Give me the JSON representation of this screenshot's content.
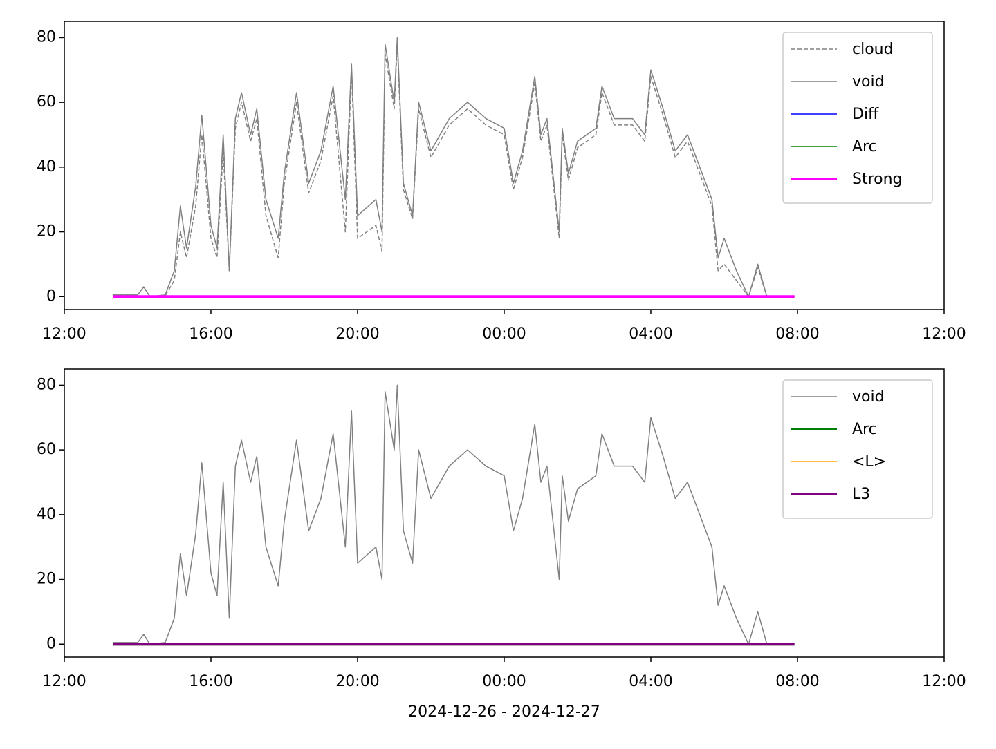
{
  "chart_data": [
    {
      "type": "line",
      "x": [
        "13:20",
        "14:00",
        "14:10",
        "14:20",
        "14:45",
        "15:00",
        "15:10",
        "15:20",
        "15:35",
        "15:45",
        "16:00",
        "16:10",
        "16:20",
        "16:30",
        "16:40",
        "16:50",
        "17:05",
        "17:15",
        "17:30",
        "17:50",
        "18:00",
        "18:20",
        "18:40",
        "19:00",
        "19:20",
        "19:40",
        "19:50",
        "20:00",
        "20:30",
        "20:40",
        "20:45",
        "21:00",
        "21:05",
        "21:15",
        "21:30",
        "21:40",
        "22:00",
        "22:30",
        "23:00",
        "23:30",
        "00:00",
        "00:15",
        "00:30",
        "00:50",
        "01:00",
        "01:10",
        "01:30",
        "01:35",
        "01:45",
        "02:00",
        "02:30",
        "02:40",
        "03:00",
        "03:30",
        "03:50",
        "04:00",
        "04:20",
        "04:40",
        "05:00",
        "05:20",
        "05:40",
        "05:50",
        "06:00",
        "06:20",
        "06:40",
        "06:55",
        "07:10",
        "07:55"
      ],
      "series": [
        {
          "name": "cloud",
          "color": "#808080",
          "width": 1.5,
          "dash": true,
          "values": [
            0.5,
            0.5,
            3,
            0,
            0.2,
            5,
            20,
            12,
            28,
            50,
            18,
            12,
            45,
            8,
            52,
            60,
            48,
            55,
            25,
            12,
            35,
            60,
            32,
            42,
            62,
            20,
            70,
            18,
            22,
            14,
            75,
            58,
            78,
            33,
            24,
            58,
            43,
            53,
            58,
            53,
            50,
            33,
            43,
            66,
            48,
            53,
            18,
            50,
            36,
            46,
            50,
            63,
            53,
            53,
            48,
            68,
            56,
            43,
            48,
            38,
            28,
            8,
            10,
            5,
            0,
            9,
            0,
            0
          ]
        },
        {
          "name": "void",
          "color": "#808080",
          "width": 1.5,
          "values": [
            0.5,
            0.5,
            3,
            0,
            0.5,
            8,
            28,
            15,
            34,
            56,
            22,
            15,
            50,
            8,
            55,
            63,
            50,
            58,
            30,
            18,
            38,
            63,
            35,
            45,
            65,
            30,
            72,
            25,
            30,
            20,
            78,
            60,
            80,
            35,
            25,
            60,
            45,
            55,
            60,
            55,
            52,
            35,
            45,
            68,
            50,
            55,
            20,
            52,
            38,
            48,
            52,
            65,
            55,
            55,
            50,
            70,
            58,
            45,
            50,
            40,
            30,
            12,
            18,
            8,
            0,
            10,
            0,
            0
          ]
        },
        {
          "name": "Diff",
          "color": "#0000ff",
          "width": 1.5,
          "values": [
            0,
            0,
            0,
            0,
            0,
            0,
            0,
            0,
            0,
            0,
            0,
            0,
            0,
            0,
            0,
            0,
            0,
            0,
            0,
            0,
            0,
            0,
            0,
            0,
            0,
            0,
            0,
            0,
            0,
            0,
            0,
            0,
            0,
            0,
            0,
            0,
            0,
            0,
            0,
            0,
            0,
            0,
            0,
            0,
            0,
            0,
            0,
            0,
            0,
            0,
            0,
            0,
            0,
            0,
            0,
            0,
            0,
            0,
            0,
            0,
            0,
            0,
            0,
            0,
            0,
            0,
            0,
            0
          ]
        },
        {
          "name": "Arc",
          "color": "#008000",
          "width": 1.5,
          "values": [
            0,
            0,
            0,
            0,
            0,
            0,
            0,
            0,
            0,
            0,
            0,
            0,
            0,
            0,
            0,
            0,
            0,
            0,
            0,
            0,
            0,
            0,
            0,
            0,
            0,
            0,
            0,
            0,
            0,
            0,
            0,
            0,
            0,
            0,
            0,
            0,
            0,
            0,
            0,
            0,
            0,
            0,
            0,
            0,
            0,
            0,
            0,
            0,
            0,
            0,
            0,
            0,
            0,
            0,
            0,
            0,
            0,
            0,
            0,
            0,
            0,
            0,
            0,
            0,
            0,
            0,
            0,
            0
          ]
        },
        {
          "name": "Strong",
          "color": "#ff00ff",
          "width": 4,
          "values": [
            0,
            0,
            0,
            0,
            0,
            0,
            0,
            0,
            0,
            0,
            0,
            0,
            0,
            0,
            0,
            0,
            0,
            0,
            0,
            0,
            0,
            0,
            0,
            0,
            0,
            0,
            0,
            0,
            0,
            0,
            0,
            0,
            0,
            0,
            0,
            0,
            0,
            0,
            0,
            0,
            0,
            0,
            0,
            0,
            0,
            0,
            0,
            0,
            0,
            0,
            0,
            0,
            0,
            0,
            0,
            0,
            0,
            0,
            0,
            0,
            0,
            0,
            0,
            0,
            0,
            0,
            0,
            0
          ]
        }
      ],
      "xlim": [
        "12:00",
        "12:00"
      ],
      "xticks": [
        "12:00",
        "16:00",
        "20:00",
        "00:00",
        "04:00",
        "08:00",
        "12:00"
      ],
      "ylim": [
        -4,
        85
      ],
      "yticks": [
        0,
        20,
        40,
        60,
        80
      ],
      "legend": "upper right"
    },
    {
      "type": "line",
      "xlabel": "2024-12-26 - 2024-12-27",
      "x": [
        "13:20",
        "14:00",
        "14:10",
        "14:20",
        "14:45",
        "15:00",
        "15:10",
        "15:20",
        "15:35",
        "15:45",
        "16:00",
        "16:10",
        "16:20",
        "16:30",
        "16:40",
        "16:50",
        "17:05",
        "17:15",
        "17:30",
        "17:50",
        "18:00",
        "18:20",
        "18:40",
        "19:00",
        "19:20",
        "19:40",
        "19:50",
        "20:00",
        "20:30",
        "20:40",
        "20:45",
        "21:00",
        "21:05",
        "21:15",
        "21:30",
        "21:40",
        "22:00",
        "22:30",
        "23:00",
        "23:30",
        "00:00",
        "00:15",
        "00:30",
        "00:50",
        "01:00",
        "01:10",
        "01:30",
        "01:35",
        "01:45",
        "02:00",
        "02:30",
        "02:40",
        "03:00",
        "03:30",
        "03:50",
        "04:00",
        "04:20",
        "04:40",
        "05:00",
        "05:20",
        "05:40",
        "05:50",
        "06:00",
        "06:20",
        "06:40",
        "06:55",
        "07:10",
        "07:55"
      ],
      "series": [
        {
          "name": "void",
          "color": "#808080",
          "width": 1.5,
          "values": [
            0.5,
            0.5,
            3,
            0,
            0.5,
            8,
            28,
            15,
            34,
            56,
            22,
            15,
            50,
            8,
            55,
            63,
            50,
            58,
            30,
            18,
            38,
            63,
            35,
            45,
            65,
            30,
            72,
            25,
            30,
            20,
            78,
            60,
            80,
            35,
            25,
            60,
            45,
            55,
            60,
            55,
            52,
            35,
            45,
            68,
            50,
            55,
            20,
            52,
            38,
            48,
            52,
            65,
            55,
            55,
            50,
            70,
            58,
            45,
            50,
            40,
            30,
            12,
            18,
            8,
            0,
            10,
            0,
            0
          ]
        },
        {
          "name": "Arc",
          "color": "#008000",
          "width": 4,
          "values": [
            0,
            0,
            0,
            0,
            0,
            0,
            0,
            0,
            0,
            0,
            0,
            0,
            0,
            0,
            0,
            0,
            0,
            0,
            0,
            0,
            0,
            0,
            0,
            0,
            0,
            0,
            0,
            0,
            0,
            0,
            0,
            0,
            0,
            0,
            0,
            0,
            0,
            0,
            0,
            0,
            0,
            0,
            0,
            0,
            0,
            0,
            0,
            0,
            0,
            0,
            0,
            0,
            0,
            0,
            0,
            0,
            0,
            0,
            0,
            0,
            0,
            0,
            0,
            0,
            0,
            0,
            0,
            0
          ]
        },
        {
          "name": "<L>",
          "color": "#ffa500",
          "width": 1.5,
          "values": [
            0,
            0,
            0,
            0,
            0,
            0,
            0,
            0,
            0,
            0,
            0,
            0,
            0,
            0,
            0,
            0,
            0,
            0,
            0,
            0,
            0,
            0,
            0,
            0,
            0,
            0,
            0,
            0,
            0,
            0,
            0,
            0,
            0,
            0,
            0,
            0,
            0,
            0,
            0,
            0,
            0,
            0,
            0,
            0,
            0,
            0,
            0,
            0,
            0,
            0,
            0,
            0,
            0,
            0,
            0,
            0,
            0,
            0,
            0,
            0,
            0,
            0,
            0,
            0,
            0,
            0,
            0,
            0
          ]
        },
        {
          "name": "L3",
          "color": "#800080",
          "width": 4,
          "values": [
            0,
            0,
            0,
            0,
            0,
            0,
            0,
            0,
            0,
            0,
            0,
            0,
            0,
            0,
            0,
            0,
            0,
            0,
            0,
            0,
            0,
            0,
            0,
            0,
            0,
            0,
            0,
            0,
            0,
            0,
            0,
            0,
            0,
            0,
            0,
            0,
            0,
            0,
            0,
            0,
            0,
            0,
            0,
            0,
            0,
            0,
            0,
            0,
            0,
            0,
            0,
            0,
            0,
            0,
            0,
            0,
            0,
            0,
            0,
            0,
            0,
            0,
            0,
            0,
            0,
            0,
            0,
            0
          ]
        }
      ],
      "xlim": [
        "12:00",
        "12:00"
      ],
      "xticks": [
        "12:00",
        "16:00",
        "20:00",
        "00:00",
        "04:00",
        "08:00",
        "12:00"
      ],
      "ylim": [
        -4,
        85
      ],
      "yticks": [
        0,
        20,
        40,
        60,
        80
      ],
      "legend": "upper right"
    }
  ]
}
